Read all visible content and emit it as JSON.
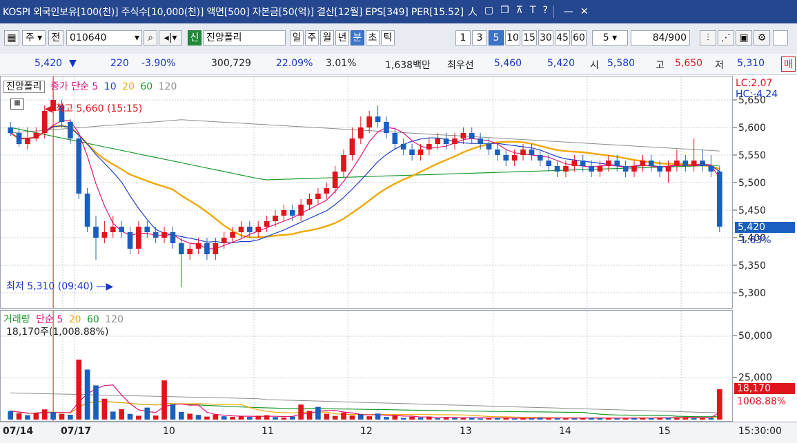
{
  "titlebar": {
    "title": "KOSPI 외국인보유[100(천)] 주식수[10,000(천)] 액면[500] 자본금[50(억)] 결산[12월] EPS[349] PER[15.52]",
    "icons": [
      "person-icon",
      "window-icon",
      "restore-icon",
      "pin-icon",
      "font-icon",
      "help-icon",
      "minimize-icon",
      "close-icon"
    ],
    "glyphs": {
      "person": "人",
      "window": "▢",
      "restore": "❐",
      "pin": "⊼",
      "font": "T",
      "help": "?",
      "minimize": "—",
      "close": "✕"
    }
  },
  "toolbar": {
    "market": "주",
    "code_label": "전",
    "code": "010640",
    "stock_name": "진양폴리",
    "periods": [
      "일",
      "주",
      "월",
      "년",
      "분",
      "초",
      "틱"
    ],
    "selected_period": "분",
    "intervals": [
      "1",
      "3",
      "5",
      "10",
      "15",
      "30",
      "45",
      "60"
    ],
    "selected_interval": "5",
    "interval_select": "5",
    "count": "84",
    "count_total": "/900",
    "cut_label": "매"
  },
  "quote": {
    "price": "5,420",
    "arrow": "▼",
    "change": "220",
    "change_pct": "-3.90%",
    "volume": "300,729",
    "turnover": "22.09%",
    "pct2": "3.01%",
    "amount": "1,638백만",
    "best_ask_label": "최우선",
    "best_ask": "5,460",
    "best_bid": "5,420",
    "open_label": "시",
    "open": "5,580",
    "high_label": "고",
    "high": "5,650",
    "low_label": "저",
    "low": "5,310"
  },
  "price_panel": {
    "name": "진양폴리",
    "ma_label": "종가 단순",
    "ma_periods": [
      "5",
      "10",
      "20",
      "60",
      "120"
    ],
    "high_note": "최고 5,660 (15:15)",
    "low_note": "최저 5,310 (09:40)",
    "lc": "LC:2.07",
    "hc": "HC:-4.24",
    "current_label": "5,420",
    "current_pct": "-1.63%"
  },
  "volume_panel": {
    "name": "거래량",
    "ma_label": "단순",
    "ma_periods": [
      "5",
      "20",
      "60",
      "120"
    ],
    "info": "18,170주(1,008.88%)",
    "last_label": "18,170",
    "last_pct": "1008.88%"
  },
  "colors": {
    "up": "#e0141c",
    "down": "#1a5fc0",
    "ma5": "#e1147a",
    "ma10": "#1f3fc8",
    "ma20": "#f0a800",
    "ma60": "#1b9a2c",
    "ma120": "#8c8c8c"
  },
  "chart_data": {
    "type": "candlestick",
    "price_axis": {
      "ticks": [
        5300,
        5350,
        5400,
        5450,
        5500,
        5550,
        5600,
        5650
      ],
      "ylim": [
        5285,
        5670
      ]
    },
    "volume_axis": {
      "ticks": [
        25000,
        50000
      ],
      "ylim": [
        0,
        62000
      ]
    },
    "x_labels": [
      "07/14",
      "07/17",
      "10",
      "11",
      "12",
      "13",
      "14",
      "15"
    ],
    "time_label": "15:30:00",
    "candles": [
      [
        5600,
        5590,
        5610,
        5585
      ],
      [
        5590,
        5570,
        5600,
        5565
      ],
      [
        5570,
        5580,
        5600,
        5560
      ],
      [
        5580,
        5590,
        5600,
        5575
      ],
      [
        5590,
        5630,
        5640,
        5580
      ],
      [
        5630,
        5650,
        5660,
        5620
      ],
      [
        5640,
        5610,
        5650,
        5600
      ],
      [
        5610,
        5580,
        5615,
        5570
      ],
      [
        5580,
        5480,
        5590,
        5470
      ],
      [
        5480,
        5420,
        5490,
        5410
      ],
      [
        5420,
        5400,
        5440,
        5360
      ],
      [
        5400,
        5410,
        5430,
        5390
      ],
      [
        5410,
        5420,
        5440,
        5400
      ],
      [
        5420,
        5410,
        5430,
        5400
      ],
      [
        5410,
        5380,
        5420,
        5370
      ],
      [
        5380,
        5420,
        5430,
        5370
      ],
      [
        5420,
        5410,
        5430,
        5400
      ],
      [
        5410,
        5400,
        5420,
        5390
      ],
      [
        5400,
        5410,
        5420,
        5390
      ],
      [
        5410,
        5390,
        5420,
        5380
      ],
      [
        5390,
        5370,
        5400,
        5310
      ],
      [
        5370,
        5380,
        5390,
        5360
      ],
      [
        5380,
        5390,
        5400,
        5370
      ],
      [
        5390,
        5370,
        5400,
        5360
      ],
      [
        5370,
        5390,
        5400,
        5360
      ],
      [
        5390,
        5400,
        5410,
        5380
      ],
      [
        5400,
        5410,
        5420,
        5390
      ],
      [
        5410,
        5420,
        5430,
        5400
      ],
      [
        5420,
        5410,
        5430,
        5400
      ],
      [
        5410,
        5420,
        5430,
        5400
      ],
      [
        5420,
        5430,
        5440,
        5410
      ],
      [
        5430,
        5440,
        5450,
        5420
      ],
      [
        5440,
        5450,
        5460,
        5430
      ],
      [
        5450,
        5440,
        5460,
        5430
      ],
      [
        5440,
        5460,
        5470,
        5430
      ],
      [
        5460,
        5470,
        5480,
        5450
      ],
      [
        5470,
        5480,
        5490,
        5460
      ],
      [
        5480,
        5490,
        5500,
        5470
      ],
      [
        5490,
        5520,
        5530,
        5480
      ],
      [
        5520,
        5550,
        5560,
        5510
      ],
      [
        5550,
        5580,
        5600,
        5540
      ],
      [
        5580,
        5600,
        5620,
        5570
      ],
      [
        5600,
        5620,
        5630,
        5590
      ],
      [
        5620,
        5610,
        5640,
        5600
      ],
      [
        5610,
        5590,
        5620,
        5580
      ],
      [
        5590,
        5570,
        5600,
        5560
      ],
      [
        5570,
        5560,
        5580,
        5550
      ],
      [
        5560,
        5550,
        5570,
        5540
      ],
      [
        5550,
        5560,
        5570,
        5540
      ],
      [
        5560,
        5570,
        5580,
        5550
      ],
      [
        5570,
        5580,
        5590,
        5560
      ],
      [
        5580,
        5570,
        5590,
        5560
      ],
      [
        5570,
        5580,
        5590,
        5560
      ],
      [
        5580,
        5590,
        5600,
        5570
      ],
      [
        5590,
        5580,
        5600,
        5570
      ],
      [
        5580,
        5570,
        5590,
        5560
      ],
      [
        5570,
        5560,
        5580,
        5550
      ],
      [
        5560,
        5550,
        5570,
        5540
      ],
      [
        5550,
        5540,
        5560,
        5530
      ],
      [
        5540,
        5550,
        5560,
        5530
      ],
      [
        5550,
        5560,
        5570,
        5540
      ],
      [
        5560,
        5550,
        5570,
        5540
      ],
      [
        5550,
        5540,
        5560,
        5530
      ],
      [
        5540,
        5530,
        5550,
        5520
      ],
      [
        5530,
        5520,
        5540,
        5510
      ],
      [
        5520,
        5530,
        5540,
        5510
      ],
      [
        5530,
        5540,
        5550,
        5520
      ],
      [
        5540,
        5530,
        5550,
        5520
      ],
      [
        5530,
        5520,
        5540,
        5510
      ],
      [
        5520,
        5530,
        5540,
        5510
      ],
      [
        5530,
        5540,
        5550,
        5520
      ],
      [
        5540,
        5530,
        5550,
        5520
      ],
      [
        5530,
        5520,
        5540,
        5510
      ],
      [
        5520,
        5530,
        5540,
        5510
      ],
      [
        5530,
        5540,
        5550,
        5520
      ],
      [
        5540,
        5530,
        5550,
        5520
      ],
      [
        5530,
        5520,
        5540,
        5510
      ],
      [
        5520,
        5530,
        5540,
        5500
      ],
      [
        5530,
        5540,
        5560,
        5520
      ],
      [
        5540,
        5530,
        5550,
        5520
      ],
      [
        5530,
        5540,
        5580,
        5520
      ],
      [
        5540,
        5530,
        5560,
        5520
      ],
      [
        5530,
        5520,
        5550,
        5510
      ],
      [
        5520,
        5420,
        5530,
        5410
      ]
    ],
    "volumes": [
      5200,
      3800,
      2600,
      4100,
      6100,
      4500,
      3400,
      2900,
      36000,
      30000,
      20500,
      12500,
      4800,
      6200,
      3400,
      2300,
      7200,
      2400,
      23500,
      9200,
      4600,
      3500,
      2800,
      1800,
      3000,
      2000,
      1600,
      2000,
      1600,
      2300,
      2600,
      1500,
      1200,
      1800,
      9000,
      5200,
      7600,
      3500,
      2200,
      4200,
      2400,
      3100,
      2000,
      3600,
      1600,
      2400,
      1000,
      1700,
      1200,
      1700,
      800,
      1400,
      1000,
      900,
      1200,
      700,
      900,
      1000,
      1100,
      600,
      800,
      700,
      1200,
      1000,
      900,
      800,
      700,
      900,
      1100,
      800,
      1000,
      700,
      900,
      800,
      1200,
      900,
      1300,
      1100,
      1300,
      1500,
      800,
      1000,
      900,
      18170
    ],
    "volume_up": [
      false,
      true,
      false,
      true,
      true,
      false,
      true,
      false,
      true,
      false,
      false,
      true,
      false,
      true,
      false,
      true,
      false,
      true,
      true,
      false,
      false,
      true,
      false,
      true,
      true,
      false,
      true,
      true,
      false,
      true,
      true,
      false,
      true,
      false,
      true,
      true,
      false,
      true,
      true,
      true,
      true,
      false,
      true,
      false,
      false,
      true,
      false,
      true,
      false,
      true,
      false,
      true,
      false,
      true,
      false,
      false,
      true,
      false,
      true,
      false,
      true,
      false,
      false,
      true,
      false,
      true,
      false,
      true,
      false,
      false,
      true,
      false,
      true,
      false,
      true,
      false,
      true,
      false,
      true,
      true,
      false,
      true,
      false,
      true
    ]
  }
}
